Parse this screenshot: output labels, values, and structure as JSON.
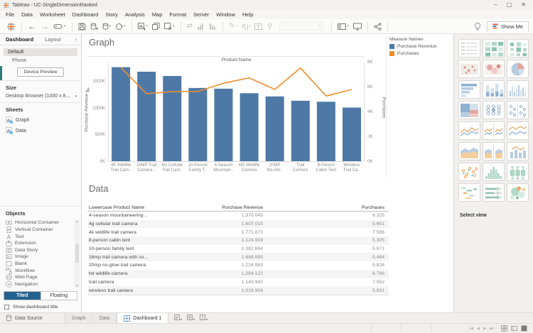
{
  "window": {
    "title": "Tableau - UC-SingleDimensionRanked",
    "controls": [
      "minimize-icon",
      "maximize-icon",
      "close-icon"
    ]
  },
  "menu": {
    "items": [
      "File",
      "Data",
      "Worksheet",
      "Dashboard",
      "Story",
      "Analysis",
      "Map",
      "Format",
      "Server",
      "Window",
      "Help"
    ]
  },
  "toolbar": {
    "groups": [
      [
        "back",
        "forward",
        "revert"
      ],
      [
        "save",
        "new-data-source",
        "saved-data-sources",
        "pause-auto-updates"
      ],
      [
        "new-worksheet",
        "duplicate",
        "clear-sheet"
      ],
      [
        "swap-rows-columns",
        "sort-ascending",
        "sort-descending"
      ],
      [
        "highlight",
        "format-workbook",
        "show-mark-labels",
        "fix-axes",
        "fit-selector"
      ],
      [
        "show-cards",
        "presentation-mode"
      ],
      [
        "share"
      ]
    ],
    "show_me_label": "Show Me"
  },
  "sidebar": {
    "tabs": {
      "dashboard": "Dashboard",
      "layout": "Layout",
      "active": "Dashboard"
    },
    "device": {
      "default_label": "Default",
      "phone_label": "Phone",
      "preview_button": "Device Preview"
    },
    "size": {
      "label": "Size",
      "value": "Desktop Browser (1000 x 8..."
    },
    "sheets": {
      "label": "Sheets",
      "items": [
        "Graph",
        "Data"
      ]
    },
    "objects": {
      "label": "Objects",
      "items": [
        {
          "icon": "horizontal-container-icon",
          "label": "Horizontal Container"
        },
        {
          "icon": "vertical-container-icon",
          "label": "Vertical Container"
        },
        {
          "icon": "text-icon",
          "label": "Text"
        },
        {
          "icon": "extension-icon",
          "label": "Extension"
        },
        {
          "icon": "data-story-icon",
          "label": "Data Story"
        },
        {
          "icon": "image-icon",
          "label": "Image"
        },
        {
          "icon": "blank-icon",
          "label": "Blank"
        },
        {
          "icon": "workflow-icon",
          "label": "Workflow"
        },
        {
          "icon": "web-page-icon",
          "label": "Web Page"
        },
        {
          "icon": "navigation-icon",
          "label": "Navigation"
        }
      ]
    },
    "layout_mode": {
      "tiled": "Tiled",
      "floating": "Floating",
      "active": "Tiled"
    },
    "show_title_checkbox": {
      "label": "Show dashboard title",
      "checked": false
    }
  },
  "canvas": {
    "graph_title": "Graph",
    "data_title": "Data"
  },
  "chart_data": {
    "type": "bar",
    "subtype": "dual-axis bar + line",
    "title": "Graph",
    "column_header": "Product Name",
    "categories": [
      "4K Wildlife Trail Cam..",
      "16MP Trail Camera ..",
      "4G Cellular Trail Cam..",
      "10-Person Family T..",
      "4-Season Mountain..",
      "HD Wildlife Camera",
      "20MP No-Glo..",
      "Trail Camera",
      "8-Person Cabin Tent",
      "Wireless Trail Ca.."
    ],
    "category_label_lines": [
      [
        "4K Wildlife",
        "Trail Cam.."
      ],
      [
        "16MP Trail",
        "Camera .."
      ],
      [
        "4G Cellular",
        "Trail Cam.."
      ],
      [
        "10-Person",
        "Family T.."
      ],
      [
        "4-Season",
        "Mountain.."
      ],
      [
        "HD Wildlife",
        "Camera"
      ],
      [
        "20MP",
        "No-Glo.."
      ],
      [
        "Trail",
        "Camera"
      ],
      [
        "8-Person",
        "Cabin Tent"
      ],
      [
        "Wireless",
        "Trail Ca.."
      ]
    ],
    "series": [
      {
        "name": "Purchase Revenue",
        "type": "bar",
        "axis": "left",
        "color": "#4e79a7",
        "values": [
          1771873,
          1686895,
          1607015,
          1382694,
          1370045,
          1284122,
          1224983,
          1143940,
          1124909,
          1016904
        ]
      },
      {
        "name": "Purchases",
        "type": "line",
        "axis": "right",
        "color": "#f28e2b",
        "values": [
          7596,
          5484,
          5651,
          5671,
          6325,
          6766,
          5826,
          7552,
          5305,
          5831
        ]
      }
    ],
    "left_axis": {
      "label": "Purchase Revenue",
      "ticks": [
        "0K",
        "500K",
        "1000K",
        "1500K"
      ],
      "tick_values": [
        0,
        500000,
        1000000,
        1500000
      ],
      "max": 1860000
    },
    "right_axis": {
      "label": "Purchases",
      "ticks": [
        "0K",
        "2K",
        "4K",
        "6K",
        "8K"
      ],
      "tick_values": [
        0,
        2000,
        4000,
        6000,
        8000
      ],
      "max": 8000
    },
    "legend": {
      "title": "Measure Names",
      "entries": [
        "Purchase Revenue",
        "Purchases"
      ],
      "colors": [
        "#4e79a7",
        "#f28e2b"
      ],
      "position": "top-right"
    },
    "grid": false
  },
  "table": {
    "columns": [
      "Lowercase Product Name",
      "Purchase Revenue",
      "Purchases"
    ],
    "rows": [
      [
        "4-season mountaineering ..",
        "1.370.045",
        "6.325"
      ],
      [
        "4g cellular trail camera",
        "1.607.015",
        "5.651"
      ],
      [
        "4k wildlife trail camera",
        "1.771.873",
        "7.596"
      ],
      [
        "8-person cabin tent",
        "1.124.909",
        "5.305"
      ],
      [
        "10-person family tent",
        "1.382.694",
        "5.671"
      ],
      [
        "16mp trail camera with so...",
        "1.686.895",
        "5.484"
      ],
      [
        "20mp no-glow trail camera",
        "1.224.983",
        "5.826"
      ],
      [
        "hd wildlife camera",
        "1.284.122",
        "6.766"
      ],
      [
        "trail camera",
        "1.143.940",
        "7.552"
      ],
      [
        "wireless trail camera",
        "1.016.904",
        "5.831"
      ]
    ]
  },
  "show_me": {
    "label": "Show Me",
    "select_view_label": "Select view",
    "thumbnails": [
      "text-table",
      "highlight-table",
      "heat-map",
      "symbol-map",
      "filled-map",
      "pie-chart",
      "horizontal-bars",
      "stacked-bars",
      "side-by-side-bars",
      "treemap",
      "circle-views",
      "side-by-side-circles",
      "lines-continuous",
      "lines-discrete",
      "dual-lines",
      "area-continuous",
      "area-discrete",
      "dual-combination",
      "scatter-plot",
      "histogram",
      "box-and-whisker",
      "gantt",
      "bullet-graph",
      "packed-bubbles"
    ]
  },
  "bottom_tabs": {
    "data_source": "Data Source",
    "tabs": [
      "Graph",
      "Data"
    ],
    "active_tab": "Dashboard 1",
    "new_buttons": [
      "new-worksheet-icon",
      "new-dashboard-icon",
      "new-story-icon"
    ]
  },
  "status_bar": {
    "icons": [
      "first-record-icon",
      "previous-record-icon",
      "next-record-icon",
      "last-record-icon",
      "grid-view-icon",
      "filmstrip-view-icon",
      "full-view-icon"
    ]
  },
  "colors": {
    "bar": "#4e79a7",
    "line": "#f28e2b",
    "tiled_active_bg": "#23618e",
    "panel_bg": "#f1f0ef"
  }
}
